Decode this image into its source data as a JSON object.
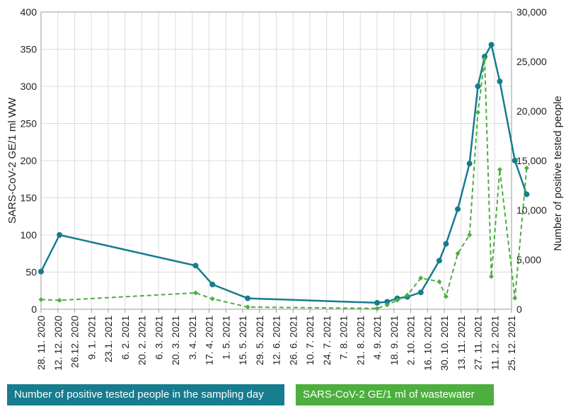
{
  "chart_data": {
    "type": "line",
    "title": "",
    "xlabel": "",
    "ylabel_left": "SARS-CoV-2 GE/1 ml WW",
    "ylabel_right": "Number of positive tested people",
    "y_left_range": [
      0,
      400
    ],
    "y_left_ticks": [
      "0",
      "50",
      "100",
      "150",
      "200",
      "250",
      "300",
      "350",
      "400"
    ],
    "y_right_range": [
      0,
      30000
    ],
    "y_right_ticks": [
      "0",
      "5,000",
      "10,000",
      "15,000",
      "20,000",
      "25,000",
      "30,000"
    ],
    "grid": true,
    "x_tick_labels": [
      "28. 11. 2020",
      "12. 12. 2020",
      "26.12. 2020",
      "9. 1. 2021",
      "23.1. 2021",
      "6. 2. 2021",
      "20. 2. 2021",
      "6. 3. 2021",
      "20. 3. 2021",
      "3. 4. 2021",
      "17. 4. 2021",
      "1. 5. 2021",
      "15. 5. 2021",
      "29. 5. 2021",
      "12. 6. 2021",
      "26. 6. 2021",
      "10. 7. 2021",
      "24. 7. 2021",
      "7. 8. 2021",
      "21. 8. 2021",
      "4. 9. 2021",
      "18. 9. 2021",
      "2. 10. 2021",
      "16. 10. 2021",
      "30. 10. 2021",
      "13. 11. 2021",
      "27. 11. 2021",
      "11. 12. 2021",
      "25. 12. 2021"
    ],
    "series": [
      {
        "name": "Number of positive tested people in the sampling day",
        "axis": "right",
        "color": "#167c8e",
        "style": "solid",
        "x_index": [
          0,
          1.1,
          9.2,
          10.2,
          12.3,
          20.0,
          20.6,
          21.2,
          21.8,
          22.6,
          23.7,
          24.1,
          24.8,
          25.5,
          26.0,
          26.4,
          26.8,
          27.3,
          28.2,
          28.9
        ],
        "values": [
          3800,
          7500,
          4400,
          2500,
          1100,
          650,
          750,
          1100,
          1250,
          1700,
          4900,
          6600,
          10100,
          14700,
          22500,
          25500,
          26700,
          23000,
          15000,
          11600
        ]
      },
      {
        "name": "SARS-CoV-2 GE/1 ml of wastewater",
        "axis": "left",
        "color": "#4caf3e",
        "style": "dashed",
        "x_index": [
          0,
          1.1,
          9.2,
          10.2,
          12.3,
          20.0,
          20.6,
          21.2,
          21.8,
          22.6,
          23.7,
          24.1,
          24.8,
          25.5,
          26.0,
          26.4,
          26.8,
          27.3,
          28.2,
          28.9
        ],
        "values": [
          13,
          12,
          22,
          14,
          3,
          1,
          6,
          12,
          19,
          42,
          37,
          17,
          75,
          100,
          265,
          337,
          44,
          188,
          15,
          190
        ]
      }
    ]
  }
}
